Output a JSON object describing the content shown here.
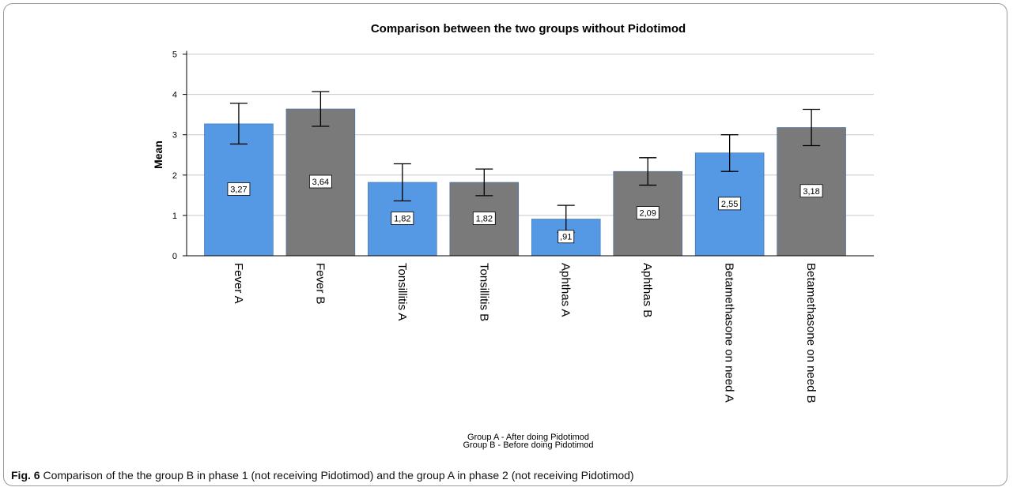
{
  "caption": {
    "label": "Fig. 6",
    "text": "Comparison of the the group B in phase 1 (not receiving Pidotimod) and the group A in phase 2 (not receiving Pidotimod)"
  },
  "colors": {
    "group_a": "#5598e3",
    "group_b": "#7a7a7a",
    "grid": "#c8c8c8"
  },
  "chart_data": {
    "type": "bar",
    "title": "Comparison between the two groups without Pidotimod",
    "xlabel": "",
    "ylabel": "Mean",
    "ylim": [
      0,
      5
    ],
    "yticks": [
      "0",
      "1",
      "2",
      "3",
      "4",
      "5"
    ],
    "grid": true,
    "categories": [
      "Fever A",
      "Fever B",
      "Tonsillitis A",
      "Tonsillitis B",
      "Aphthas A",
      "Aphthas B",
      "Betamethasone on need A",
      "Betamethasone on need B"
    ],
    "values": [
      3.27,
      3.64,
      1.82,
      1.82,
      0.91,
      2.09,
      2.55,
      3.18
    ],
    "value_labels": [
      "3,27",
      "3,64",
      "1,82",
      "1,82",
      ",91",
      "2,09",
      "2,55",
      "3,18"
    ],
    "groups": [
      "A",
      "B",
      "A",
      "B",
      "A",
      "B",
      "A",
      "B"
    ],
    "error_low": [
      2.77,
      3.21,
      1.36,
      1.49,
      0.58,
      1.75,
      2.09,
      2.73
    ],
    "error_high": [
      3.78,
      4.07,
      2.28,
      2.15,
      1.25,
      2.43,
      3.0,
      3.63
    ],
    "notes": [
      "Group A - After doing Pidotimod",
      "Group B - Before doing Pidotimod"
    ]
  }
}
